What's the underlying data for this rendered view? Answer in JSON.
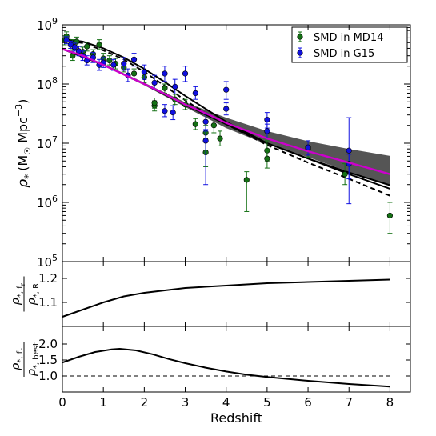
{
  "chart_data": [
    {
      "type": "scatter",
      "panel": "top",
      "ylabel_parts": [
        "ρ",
        "*",
        "(M",
        "☉",
        " Mpc",
        "−3",
        ")"
      ],
      "y_scale": "log",
      "xlim": [
        0,
        8.5
      ],
      "ylim_log10": [
        5,
        9
      ],
      "y_tick_exponents": [
        5,
        6,
        7,
        8,
        9
      ],
      "legend": {
        "placement": "top-right",
        "entries": [
          "SMD in MD14",
          "SMD in G15"
        ]
      },
      "colors": {
        "md14": "#147014",
        "g15": "#1010e0",
        "magenta": "#cc00cc",
        "band": "#555555",
        "black": "#000000"
      },
      "series": [
        {
          "name": "SMD in MD14",
          "points": [
            {
              "x": 0.05,
              "y": 555000000.0,
              "lo": 460000000.0,
              "hi": 650000000.0
            },
            {
              "x": 0.1,
              "y": 640000000.0,
              "lo": 540000000.0,
              "hi": 760000000.0
            },
            {
              "x": 0.25,
              "y": 460000000.0,
              "lo": 380000000.0,
              "hi": 560000000.0
            },
            {
              "x": 0.25,
              "y": 300000000.0,
              "lo": 250000000.0,
              "hi": 360000000.0
            },
            {
              "x": 0.35,
              "y": 520000000.0,
              "lo": 430000000.0,
              "hi": 620000000.0
            },
            {
              "x": 0.5,
              "y": 350000000.0,
              "lo": 290000000.0,
              "hi": 420000000.0
            },
            {
              "x": 0.6,
              "y": 430000000.0,
              "lo": 360000000.0,
              "hi": 510000000.0
            },
            {
              "x": 0.75,
              "y": 320000000.0,
              "lo": 270000000.0,
              "hi": 380000000.0
            },
            {
              "x": 0.9,
              "y": 460000000.0,
              "lo": 380000000.0,
              "hi": 560000000.0
            },
            {
              "x": 1.0,
              "y": 270000000.0,
              "lo": 220000000.0,
              "hi": 330000000.0
            },
            {
              "x": 1.15,
              "y": 250000000.0,
              "lo": 210000000.0,
              "hi": 300000000.0
            },
            {
              "x": 1.3,
              "y": 220000000.0,
              "lo": 180000000.0,
              "hi": 270000000.0
            },
            {
              "x": 1.5,
              "y": 190000000.0,
              "lo": 160000000.0,
              "hi": 230000000.0
            },
            {
              "x": 1.75,
              "y": 150000000.0,
              "lo": 120000000.0,
              "hi": 180000000.0
            },
            {
              "x": 2.0,
              "y": 130000000.0,
              "lo": 105000000.0,
              "hi": 160000000.0
            },
            {
              "x": 2.25,
              "y": 43000000.0,
              "lo": 35000000.0,
              "hi": 52000000.0
            },
            {
              "x": 2.25,
              "y": 48000000.0,
              "lo": 39000000.0,
              "hi": 58000000.0
            },
            {
              "x": 2.5,
              "y": 85000000.0,
              "lo": 70000000.0,
              "hi": 100000000.0
            },
            {
              "x": 2.75,
              "y": 55000000.0,
              "lo": 45000000.0,
              "hi": 67000000.0
            },
            {
              "x": 3.0,
              "y": 45000000.0,
              "lo": 37000000.0,
              "hi": 55000000.0
            },
            {
              "x": 3.25,
              "y": 21000000.0,
              "lo": 17000000.0,
              "hi": 26000000.0
            },
            {
              "x": 3.5,
              "y": 7000000.0,
              "lo": 4000000.0,
              "hi": 12000000.0
            },
            {
              "x": 3.5,
              "y": 15000000.0,
              "lo": 11000000.0,
              "hi": 20000000.0
            },
            {
              "x": 3.7,
              "y": 20000000.0,
              "lo": 15000000.0,
              "hi": 27000000.0
            },
            {
              "x": 3.85,
              "y": 12000000.0,
              "lo": 9000000.0,
              "hi": 16000000.0
            },
            {
              "x": 4.5,
              "y": 2400000.0,
              "lo": 700000.0,
              "hi": 3300000.0
            },
            {
              "x": 5.0,
              "y": 7500000.0,
              "lo": 5000000.0,
              "hi": 11000000.0
            },
            {
              "x": 5.0,
              "y": 5500000.0,
              "lo": 3800000.0,
              "hi": 8000000.0
            },
            {
              "x": 6.0,
              "y": 8000000.0,
              "lo": 5800000.0,
              "hi": 11000000.0
            },
            {
              "x": 6.9,
              "y": 3000000.0,
              "lo": 2000000.0,
              "hi": 4500000.0
            },
            {
              "x": 8.0,
              "y": 600000.0,
              "lo": 300000.0,
              "hi": 1000000.0
            }
          ]
        },
        {
          "name": "SMD in G15",
          "points": [
            {
              "x": 0.1,
              "y": 550000000.0,
              "lo": 480000000.0,
              "hi": 630000000.0
            },
            {
              "x": 0.2,
              "y": 460000000.0,
              "lo": 400000000.0,
              "hi": 530000000.0
            },
            {
              "x": 0.3,
              "y": 420000000.0,
              "lo": 360000000.0,
              "hi": 490000000.0
            },
            {
              "x": 0.4,
              "y": 360000000.0,
              "lo": 300000000.0,
              "hi": 430000000.0
            },
            {
              "x": 0.5,
              "y": 300000000.0,
              "lo": 250000000.0,
              "hi": 360000000.0
            },
            {
              "x": 0.6,
              "y": 250000000.0,
              "lo": 210000000.0,
              "hi": 300000000.0
            },
            {
              "x": 0.75,
              "y": 280000000.0,
              "lo": 230000000.0,
              "hi": 340000000.0
            },
            {
              "x": 0.9,
              "y": 210000000.0,
              "lo": 170000000.0,
              "hi": 260000000.0
            },
            {
              "x": 1.0,
              "y": 230000000.0,
              "lo": 190000000.0,
              "hi": 280000000.0
            },
            {
              "x": 1.25,
              "y": 210000000.0,
              "lo": 170000000.0,
              "hi": 260000000.0
            },
            {
              "x": 1.5,
              "y": 220000000.0,
              "lo": 170000000.0,
              "hi": 280000000.0
            },
            {
              "x": 1.6,
              "y": 140000000.0,
              "lo": 110000000.0,
              "hi": 180000000.0
            },
            {
              "x": 1.75,
              "y": 260000000.0,
              "lo": 200000000.0,
              "hi": 330000000.0
            },
            {
              "x": 2.0,
              "y": 160000000.0,
              "lo": 120000000.0,
              "hi": 210000000.0
            },
            {
              "x": 2.25,
              "y": 105000000.0,
              "lo": 80000000.0,
              "hi": 140000000.0
            },
            {
              "x": 2.5,
              "y": 150000000.0,
              "lo": 110000000.0,
              "hi": 200000000.0
            },
            {
              "x": 2.5,
              "y": 35000000.0,
              "lo": 28000000.0,
              "hi": 45000000.0
            },
            {
              "x": 2.7,
              "y": 33000000.0,
              "lo": 25000000.0,
              "hi": 43000000.0
            },
            {
              "x": 2.75,
              "y": 90000000.0,
              "lo": 68000000.0,
              "hi": 120000000.0
            },
            {
              "x": 3.0,
              "y": 150000000.0,
              "lo": 110000000.0,
              "hi": 200000000.0
            },
            {
              "x": 3.25,
              "y": 70000000.0,
              "lo": 55000000.0,
              "hi": 90000000.0
            },
            {
              "x": 3.5,
              "y": 23000000.0,
              "lo": 17000000.0,
              "hi": 32000000.0
            },
            {
              "x": 3.5,
              "y": 11000000.0,
              "lo": 2000000.0,
              "hi": 16000000.0
            },
            {
              "x": 4.0,
              "y": 80000000.0,
              "lo": 55000000.0,
              "hi": 110000000.0
            },
            {
              "x": 4.0,
              "y": 38000000.0,
              "lo": 30000000.0,
              "hi": 48000000.0
            },
            {
              "x": 5.0,
              "y": 25000000.0,
              "lo": 18000000.0,
              "hi": 33000000.0
            },
            {
              "x": 5.0,
              "y": 16000000.0,
              "lo": 12000000.0,
              "hi": 21000000.0
            },
            {
              "x": 6.0,
              "y": 8500000.0,
              "lo": 6300000.0,
              "hi": 11000000.0
            },
            {
              "x": 7.0,
              "y": 7500000.0,
              "lo": 950000.0,
              "hi": 27000000.0
            },
            {
              "x": 7.0,
              "y": 4500000.0,
              "lo": 2500000.0,
              "hi": 6500000.0
            }
          ]
        }
      ],
      "curves": {
        "band_lower": [
          [
            0,
            380000000.0
          ],
          [
            1,
            205000000.0
          ],
          [
            2,
            95000000.0
          ],
          [
            3,
            41000000.0
          ],
          [
            4,
            18000000.0
          ],
          [
            5,
            9500000.0
          ],
          [
            6,
            5800000.0
          ],
          [
            7,
            3300000.0
          ],
          [
            8,
            1900000.0
          ]
        ],
        "band_upper": [
          [
            0,
            405000000.0
          ],
          [
            1,
            220000000.0
          ],
          [
            2,
            105000000.0
          ],
          [
            3,
            49000000.0
          ],
          [
            4,
            27000000.0
          ],
          [
            5,
            16000000.0
          ],
          [
            6,
            10800000.0
          ],
          [
            7,
            8000000.0
          ],
          [
            8,
            6100000.0
          ]
        ],
        "magenta": [
          [
            0,
            390000000.0
          ],
          [
            0.5,
            300000000.0
          ],
          [
            1,
            210000000.0
          ],
          [
            1.5,
            145000000.0
          ],
          [
            2,
            100000000.0
          ],
          [
            2.5,
            68000000.0
          ],
          [
            3,
            45000000.0
          ],
          [
            3.5,
            32000000.0
          ],
          [
            4,
            22000000.0
          ],
          [
            5,
            12000000.0
          ],
          [
            6,
            7300000.0
          ],
          [
            7,
            4700000.0
          ],
          [
            8,
            3000000.0
          ]
        ],
        "black_solid_a": [
          [
            0,
            580000000.0
          ],
          [
            0.5,
            520000000.0
          ],
          [
            1,
            400000000.0
          ],
          [
            1.5,
            280000000.0
          ],
          [
            2,
            180000000.0
          ],
          [
            2.5,
            108000000.0
          ],
          [
            3,
            63000000.0
          ],
          [
            3.5,
            38000000.0
          ],
          [
            4,
            23000000.0
          ],
          [
            5,
            10000000.0
          ],
          [
            6,
            5500000.0
          ],
          [
            7,
            3200000.0
          ],
          [
            8,
            1950000.0
          ]
        ],
        "black_solid_b": [
          [
            0,
            390000000.0
          ],
          [
            1,
            210000000.0
          ],
          [
            2,
            100000000.0
          ],
          [
            3,
            44000000.0
          ],
          [
            4,
            21000000.0
          ],
          [
            5,
            10000000.0
          ],
          [
            6,
            5500000.0
          ],
          [
            7,
            3000000.0
          ],
          [
            8,
            1700000.0
          ]
        ],
        "black_dashed": [
          [
            0,
            560000000.0
          ],
          [
            0.5,
            490000000.0
          ],
          [
            1,
            370000000.0
          ],
          [
            1.5,
            260000000.0
          ],
          [
            2,
            160000000.0
          ],
          [
            2.5,
            93000000.0
          ],
          [
            3,
            53000000.0
          ],
          [
            3.5,
            32000000.0
          ],
          [
            4,
            21000000.0
          ],
          [
            5,
            9300000.0
          ],
          [
            6,
            4700000.0
          ],
          [
            7,
            2500000.0
          ],
          [
            8,
            1300000.0
          ]
        ]
      }
    },
    {
      "type": "line",
      "panel": "middle",
      "ylabel_main": "ρ",
      "ylabel_num_sub": "*, f",
      "ylabel_num_subsub": "r",
      "ylabel_den_sub": "*, R",
      "xlim": [
        0,
        8.5
      ],
      "ylim": [
        1.0,
        1.27
      ],
      "y_ticks": [
        "1.1",
        "1.2"
      ],
      "y_tick_values": [
        1.1,
        1.2
      ],
      "series": [
        {
          "points": [
            [
              0,
              1.04
            ],
            [
              0.5,
              1.07
            ],
            [
              1,
              1.1
            ],
            [
              1.5,
              1.125
            ],
            [
              2,
              1.14
            ],
            [
              3,
              1.16
            ],
            [
              4,
              1.17
            ],
            [
              5,
              1.18
            ],
            [
              6,
              1.185
            ],
            [
              7,
              1.19
            ],
            [
              8,
              1.195
            ]
          ]
        }
      ]
    },
    {
      "type": "line",
      "panel": "bottom",
      "ylabel_main": "ρ",
      "ylabel_num_sub": "*, f",
      "ylabel_num_subsub": "r",
      "ylabel_den_sub": "*, best",
      "xlim": [
        0,
        8.5
      ],
      "ylim": [
        0.5,
        2.55
      ],
      "y_ticks": [
        "1.0",
        "1.5",
        "2.0"
      ],
      "y_tick_values": [
        1.0,
        1.5,
        2.0
      ],
      "reference_line": 1.0,
      "xlabel": "Redshift",
      "x_ticks": [
        "0",
        "1",
        "2",
        "3",
        "4",
        "5",
        "6",
        "7",
        "8"
      ],
      "series": [
        {
          "points": [
            [
              0,
              1.42
            ],
            [
              0.4,
              1.6
            ],
            [
              0.8,
              1.75
            ],
            [
              1.2,
              1.83
            ],
            [
              1.4,
              1.85
            ],
            [
              1.8,
              1.8
            ],
            [
              2.2,
              1.68
            ],
            [
              2.6,
              1.53
            ],
            [
              3,
              1.4
            ],
            [
              3.5,
              1.26
            ],
            [
              4,
              1.14
            ],
            [
              4.5,
              1.04
            ],
            [
              5,
              0.97
            ],
            [
              6,
              0.85
            ],
            [
              7,
              0.75
            ],
            [
              8,
              0.67
            ]
          ]
        }
      ]
    }
  ]
}
